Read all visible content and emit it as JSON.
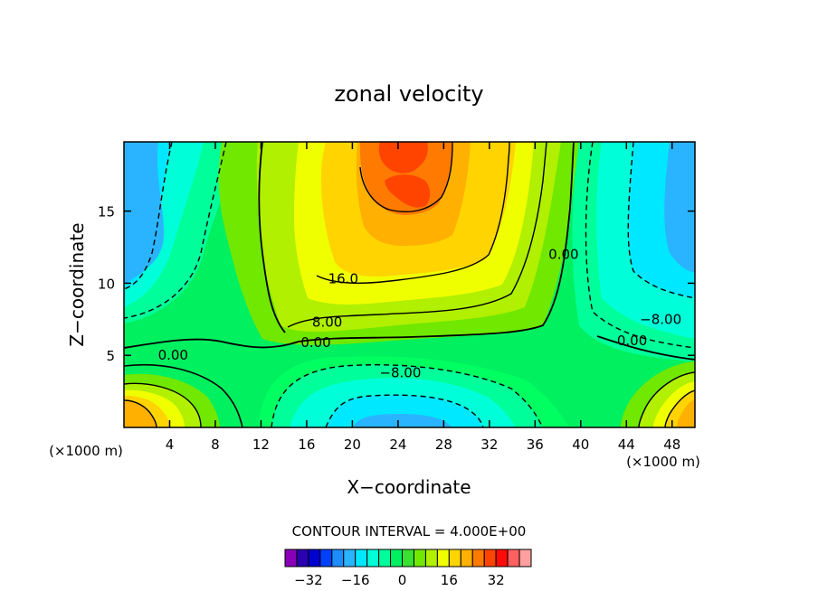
{
  "chart_data": {
    "type": "heatmap",
    "title": "zonal velocity",
    "xlabel": "X−coordinate",
    "ylabel": "Z−coordinate",
    "x_unit_left": "(×1000 m)",
    "x_unit_right": "(×1000 m)",
    "xlim": [
      0,
      50
    ],
    "ylim": [
      0,
      19.8
    ],
    "x_ticks": [
      4,
      8,
      12,
      16,
      20,
      24,
      28,
      32,
      36,
      40,
      44,
      48
    ],
    "y_ticks": [
      5,
      10,
      15
    ],
    "contour_interval_text": "CONTOUR INTERVAL = 4.000E+00",
    "contour_interval": 4,
    "colorbar": {
      "levels": [
        -36,
        -32,
        -28,
        -24,
        -20,
        -16,
        -12,
        -8,
        -4,
        0,
        4,
        8,
        12,
        16,
        20,
        24,
        28,
        32,
        36
      ],
      "colors": [
        "#8a00b8",
        "#2a00b0",
        "#0000d0",
        "#0040ff",
        "#1c8cff",
        "#2ab4ff",
        "#00e8ff",
        "#00ffd8",
        "#00ff9a",
        "#00f060",
        "#38e030",
        "#70e800",
        "#b0f000",
        "#f0ff00",
        "#ffd400",
        "#ffb000",
        "#ff7a00",
        "#ff4400",
        "#ff0a0a",
        "#ff6060",
        "#ffa0a0"
      ],
      "tick_labels": [
        "−32",
        "−16",
        "0",
        "16",
        "32"
      ],
      "tick_values": [
        -32,
        -16,
        0,
        16,
        32
      ]
    },
    "contour_labels": [
      {
        "text": "16.0",
        "value": 16,
        "x": 19.2,
        "z": 10.3
      },
      {
        "text": "8.00",
        "value": 8,
        "x": 17.8,
        "z": 7.3
      },
      {
        "text": "0.00",
        "value": 0,
        "x": 16.8,
        "z": 5.9
      },
      {
        "text": "0.00",
        "value": 0,
        "x": 4.3,
        "z": 5.0
      },
      {
        "text": "−8.00",
        "value": -8,
        "x": 24.2,
        "z": 3.8
      },
      {
        "text": "0.00",
        "value": 0,
        "x": 38.5,
        "z": 12.0
      },
      {
        "text": "0.00",
        "value": 0,
        "x": 44.5,
        "z": 6.0
      },
      {
        "text": "−8.00",
        "value": -8,
        "x": 47.0,
        "z": 7.5
      }
    ],
    "grid": false,
    "legend": "bottom",
    "colors": {
      "negative_contour_style": "dashed",
      "positive_contour_style": "solid"
    }
  }
}
